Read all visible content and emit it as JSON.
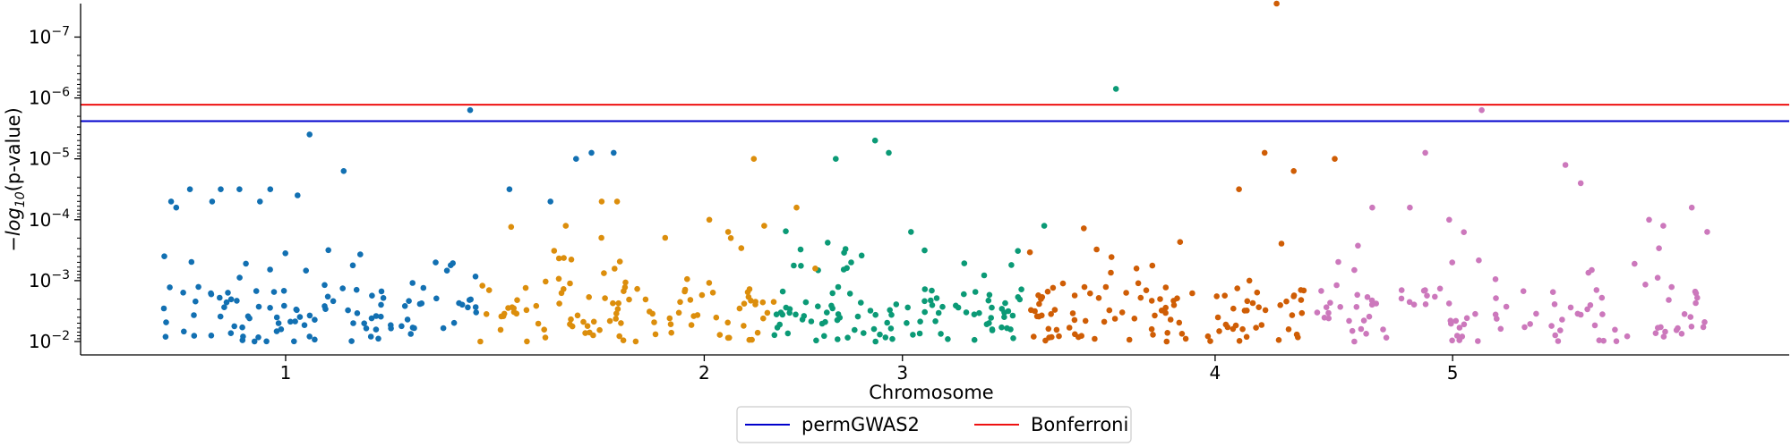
{
  "chart_data": {
    "type": "scatter",
    "title": "",
    "xlabel": "Chromosome",
    "ylabel": "−log10(p-value)",
    "ylabel_base": "−log",
    "ylabel_sub": "10",
    "ylabel_rest": "(p-value)",
    "yscale": "log-reversed",
    "xlim": [
      0,
      100
    ],
    "ylim_exponent": [
      -1.78,
      -7.55
    ],
    "x_ticks": [
      {
        "label": "1",
        "x": 12
      },
      {
        "label": "2",
        "x": 36.5
      },
      {
        "label": "3",
        "x": 48.1
      },
      {
        "label": "4",
        "x": 66.4
      },
      {
        "label": "5",
        "x": 80.3
      }
    ],
    "y_ticks": [
      {
        "base": "10",
        "exp": "−2",
        "value": -2
      },
      {
        "base": "10",
        "exp": "−3",
        "value": -3
      },
      {
        "base": "10",
        "exp": "−4",
        "value": -4
      },
      {
        "base": "10",
        "exp": "−5",
        "value": -5
      },
      {
        "base": "10",
        "exp": "−6",
        "value": -6
      },
      {
        "base": "10",
        "exp": "−7",
        "value": -7
      }
    ],
    "thresholds": [
      {
        "name": "permGWAS2",
        "color": "#0000cc",
        "value_exponent": -5.62
      },
      {
        "name": "Bonferroni",
        "color": "#ee1111",
        "value_exponent": -5.89
      }
    ],
    "legend_placement": "bottom-center",
    "colors": [
      "#1270b2",
      "#dc8e0c",
      "#0b9a76",
      "#cf5d05",
      "#cc78bc"
    ],
    "chromosome_ranges": [
      [
        4.4,
        23.2
      ],
      [
        23.2,
        40.6
      ],
      [
        40.6,
        55.5
      ],
      [
        55.5,
        72.1
      ],
      [
        72.1,
        95.3
      ]
    ],
    "series": [
      {
        "name": "chr1",
        "color": "#1270b2",
        "points": [
          [
            4.9,
            -3.4
          ],
          [
            5.3,
            -4.3
          ],
          [
            5.6,
            -4.2
          ],
          [
            6.4,
            -4.5
          ],
          [
            7.7,
            -4.3
          ],
          [
            8.2,
            -4.5
          ],
          [
            9.3,
            -4.5
          ],
          [
            10.5,
            -4.3
          ],
          [
            11.1,
            -4.5
          ],
          [
            12.7,
            -4.4
          ],
          [
            13.4,
            -5.4
          ],
          [
            14.5,
            -3.5
          ],
          [
            15.4,
            -4.8
          ],
          [
            22.8,
            -5.8
          ],
          [
            25.1,
            -4.5
          ],
          [
            27.5,
            -4.3
          ],
          [
            29.0,
            -5.0
          ],
          [
            29.9,
            -5.1
          ],
          [
            31.2,
            -5.1
          ]
        ]
      },
      {
        "name": "chr2",
        "color": "#dc8e0c",
        "points": [
          [
            30.5,
            -4.3
          ],
          [
            31.4,
            -4.3
          ],
          [
            36.8,
            -4.0
          ],
          [
            37.9,
            -3.8
          ],
          [
            39.4,
            -5.0
          ],
          [
            41.9,
            -4.2
          ],
          [
            43.0,
            -3.2
          ]
        ]
      },
      {
        "name": "chr3",
        "color": "#0b9a76",
        "points": [
          [
            44.2,
            -5.0
          ],
          [
            45.1,
            -3.3
          ],
          [
            46.5,
            -5.3
          ],
          [
            47.3,
            -5.1
          ],
          [
            48.6,
            -3.8
          ],
          [
            56.4,
            -3.9
          ],
          [
            60.6,
            -6.15
          ]
        ]
      },
      {
        "name": "chr4",
        "color": "#cf5d05",
        "points": [
          [
            61.8,
            -3.2
          ],
          [
            67.8,
            -4.5
          ],
          [
            69.3,
            -5.1
          ],
          [
            70.0,
            -7.55
          ],
          [
            71.0,
            -4.8
          ],
          [
            73.4,
            -5.0
          ]
        ]
      },
      {
        "name": "chr5",
        "color": "#cc78bc",
        "points": [
          [
            75.6,
            -4.2
          ],
          [
            77.8,
            -4.2
          ],
          [
            78.7,
            -5.1
          ],
          [
            80.1,
            -4.0
          ],
          [
            82.0,
            -5.8
          ],
          [
            86.9,
            -4.9
          ],
          [
            87.8,
            -4.6
          ],
          [
            91.8,
            -4.0
          ],
          [
            94.3,
            -4.2
          ],
          [
            95.2,
            -3.8
          ]
        ]
      }
    ]
  },
  "legend": [
    {
      "label": "permGWAS2",
      "color": "#0000cc"
    },
    {
      "label": "Bonferroni",
      "color": "#ee1111"
    }
  ]
}
